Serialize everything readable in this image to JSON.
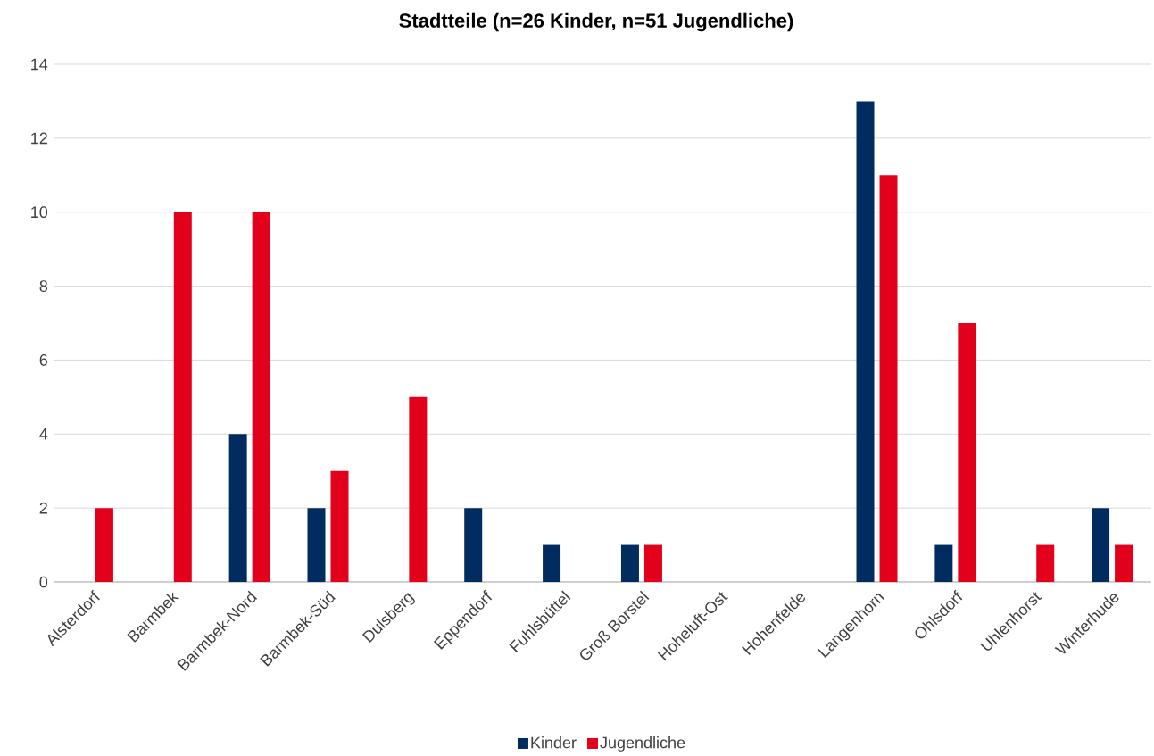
{
  "chart_data": {
    "type": "bar",
    "title": "Stadtteile (n=26 Kinder, n=51 Jugendliche)",
    "categories": [
      "Alsterdorf",
      "Barmbek",
      "Barmbek-Nord",
      "Barmbek-Süd",
      "Dulsberg",
      "Eppendorf",
      "Fuhlsbüttel",
      "Groß Borstel",
      "Hoheluft-Ost",
      "Hohenfelde",
      "Langenhorn",
      "Ohlsdorf",
      "Uhlenhorst",
      "Winterhude"
    ],
    "series": [
      {
        "name": "Kinder",
        "color": "#002c5f",
        "values": [
          0,
          0,
          4,
          2,
          0,
          2,
          1,
          1,
          0,
          0,
          13,
          1,
          0,
          2
        ]
      },
      {
        "name": "Jugendliche",
        "color": "#e2001a",
        "values": [
          2,
          10,
          10,
          3,
          5,
          0,
          0,
          1,
          0,
          0,
          11,
          7,
          1,
          1
        ]
      }
    ],
    "ylim": [
      0,
      14
    ],
    "yticks": [
      0,
      2,
      4,
      6,
      8,
      10,
      12,
      14
    ],
    "grid": "y",
    "legend": "bottom"
  }
}
